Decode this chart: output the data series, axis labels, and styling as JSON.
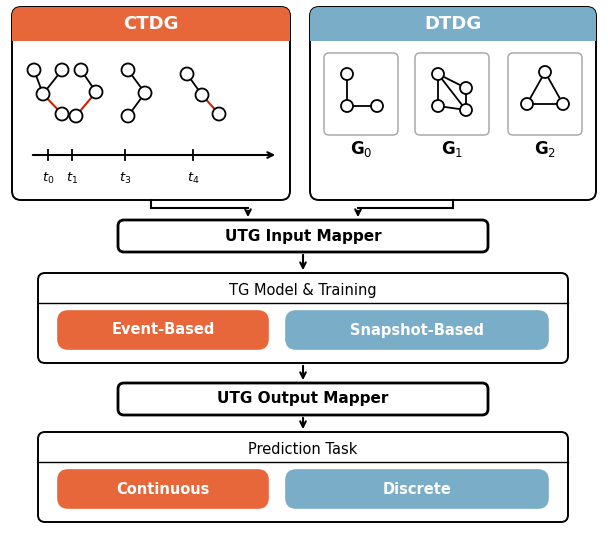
{
  "orange_color": "#E8673A",
  "blue_color": "#7AAEC8",
  "white": "#FFFFFF",
  "black": "#000000",
  "border_gray": "#AAAAAA",
  "ctdg_label": "CTDG",
  "dtdg_label": "DTDG",
  "utm_input_label": "UTG Input Mapper",
  "tg_model_label": "TG Model & Training",
  "event_based_label": "Event-Based",
  "snapshot_based_label": "Snapshot-Based",
  "utm_output_label": "UTG Output Mapper",
  "prediction_label": "Prediction Task",
  "continuous_label": "Continuous",
  "discrete_label": "Discrete",
  "red_edge": "#CC2200",
  "figw": 6.08,
  "figh": 5.6,
  "dpi": 100
}
